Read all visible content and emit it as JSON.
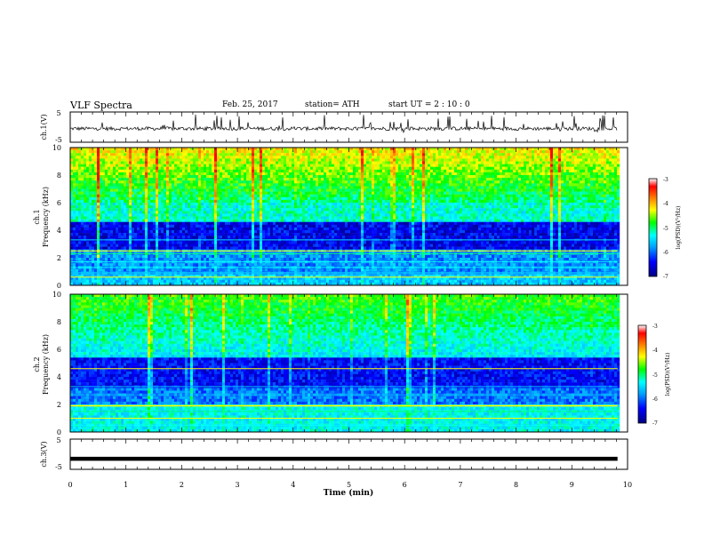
{
  "header": {
    "title": "VLF Spectra",
    "date": "Feb. 25, 2017",
    "station": "station= ATH",
    "start": "start  UT  =   2 : 10 : 0"
  },
  "chart_data": [
    {
      "type": "line",
      "ylabel": "ch.1(V)",
      "ylim": [
        -5,
        5
      ],
      "yticks": [
        "5",
        "-5"
      ],
      "description_level": "noisy waveform around -0.5 V with spikes to about +3 / -3 V"
    },
    {
      "type": "heatmap",
      "ylabel_1": "ch.1",
      "ylabel_2": "Frequency (kHz)",
      "ylim": [
        0,
        10
      ],
      "yticks": [
        "0",
        "2",
        "4",
        "6",
        "8",
        "10"
      ],
      "colorbar": {
        "label": "log(PSD)(V²/Hz)",
        "range": [
          -7,
          -3
        ],
        "ticks": [
          "-3",
          "-4",
          "-5",
          "-6",
          "-7"
        ]
      }
    },
    {
      "type": "heatmap",
      "ylabel_1": "ch.2",
      "ylabel_2": "Frequency (kHz)",
      "ylim": [
        0,
        10
      ],
      "yticks": [
        "0",
        "2",
        "4",
        "6",
        "8",
        "10"
      ],
      "colorbar": {
        "label": "log(PSD)(V²/Hz)",
        "range": [
          -7,
          -3
        ],
        "ticks": [
          "-3",
          "-4",
          "-5",
          "-6",
          "-7"
        ]
      }
    },
    {
      "type": "line",
      "ylabel": "ch.3(V)",
      "ylim": [
        -5,
        5
      ],
      "yticks": [
        "5",
        "-5"
      ],
      "level": -1.5
    }
  ],
  "xaxis": {
    "label": "Time (min)",
    "xlim": [
      0,
      10
    ],
    "ticks": [
      "0",
      "1",
      "2",
      "3",
      "4",
      "5",
      "6",
      "7",
      "8",
      "9",
      "10"
    ],
    "data_end": 9.82
  },
  "colors": {
    "colormap": [
      "#000080",
      "#0000ff",
      "#00a0ff",
      "#00ffff",
      "#00ff00",
      "#ffff00",
      "#ff8000",
      "#ff0000",
      "#ffffff"
    ]
  }
}
